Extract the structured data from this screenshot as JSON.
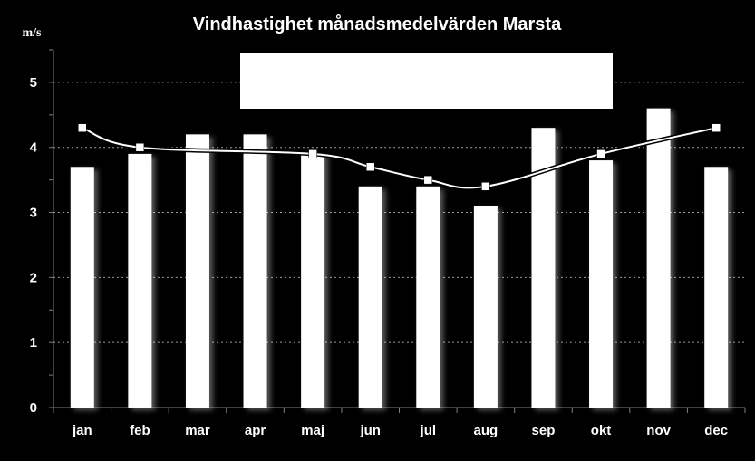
{
  "chart_data": {
    "type": "bar",
    "title": "Vindhastighet månadsmedelvärden Marsta",
    "ylabel": "m/s",
    "xlabel": "",
    "categories": [
      "jan",
      "feb",
      "mar",
      "apr",
      "maj",
      "jun",
      "jul",
      "aug",
      "sep",
      "okt",
      "nov",
      "dec"
    ],
    "series": [
      {
        "type": "bar",
        "values": [
          3.7,
          3.9,
          4.2,
          4.2,
          3.9,
          3.4,
          3.4,
          3.1,
          4.3,
          3.8,
          4.6,
          3.7
        ],
        "color": "#ffffff"
      },
      {
        "type": "line",
        "values": [
          4.3,
          4.0,
          null,
          null,
          3.9,
          3.7,
          3.5,
          3.4,
          null,
          3.9,
          null,
          4.3
        ],
        "color": "#ffffff",
        "marker": "square"
      }
    ],
    "ylim": [
      0,
      5.5
    ],
    "yticks": [
      0,
      1,
      2,
      3,
      4,
      5
    ],
    "grid": true,
    "legend": "covered by a white box",
    "colors": {
      "background": "#000000",
      "bars": "#ffffff",
      "line": "#ffffff",
      "grid": "#9a9a9a",
      "axis": "#808080"
    }
  }
}
